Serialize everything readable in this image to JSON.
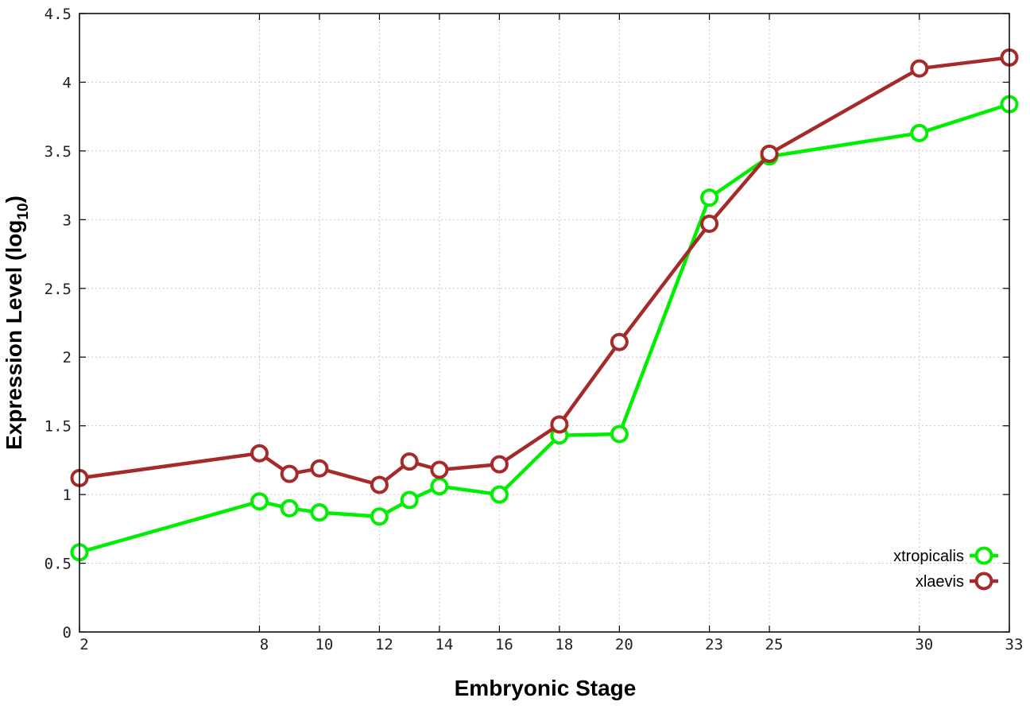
{
  "chart_data": {
    "type": "line",
    "xlabel": "Embryonic Stage",
    "ylabel_main": "Expression Level (log",
    "ylabel_sub": "10",
    "ylabel_close": ")",
    "xlim": [
      2,
      33
    ],
    "ylim": [
      0,
      4.5
    ],
    "x_ticks": [
      2,
      8,
      10,
      12,
      14,
      16,
      18,
      20,
      23,
      25,
      30,
      33
    ],
    "y_ticks": [
      0,
      0.5,
      1,
      1.5,
      2,
      2.5,
      3,
      3.5,
      4,
      4.5
    ],
    "y_tick_labels": [
      "0",
      "0.5",
      "1",
      "1.5",
      "2",
      "2.5",
      "3",
      "3.5",
      "4",
      "4.5"
    ],
    "grid": true,
    "legend_position": "bottom-right",
    "series": [
      {
        "name": "xtropicalis",
        "color": "#00ee00",
        "x": [
          2,
          8,
          9,
          10,
          12,
          13,
          14,
          16,
          18,
          20,
          23,
          25,
          30,
          33
        ],
        "values": [
          0.58,
          0.95,
          0.9,
          0.87,
          0.84,
          0.96,
          1.06,
          1.0,
          1.43,
          1.44,
          3.16,
          3.46,
          3.63,
          3.84
        ]
      },
      {
        "name": "xlaevis",
        "color": "#a52a2a",
        "x": [
          2,
          8,
          9,
          10,
          12,
          13,
          14,
          16,
          18,
          20,
          23,
          25,
          30,
          33
        ],
        "values": [
          1.12,
          1.3,
          1.15,
          1.19,
          1.07,
          1.24,
          1.18,
          1.22,
          1.51,
          2.11,
          2.97,
          3.48,
          4.1,
          4.18
        ]
      }
    ]
  }
}
